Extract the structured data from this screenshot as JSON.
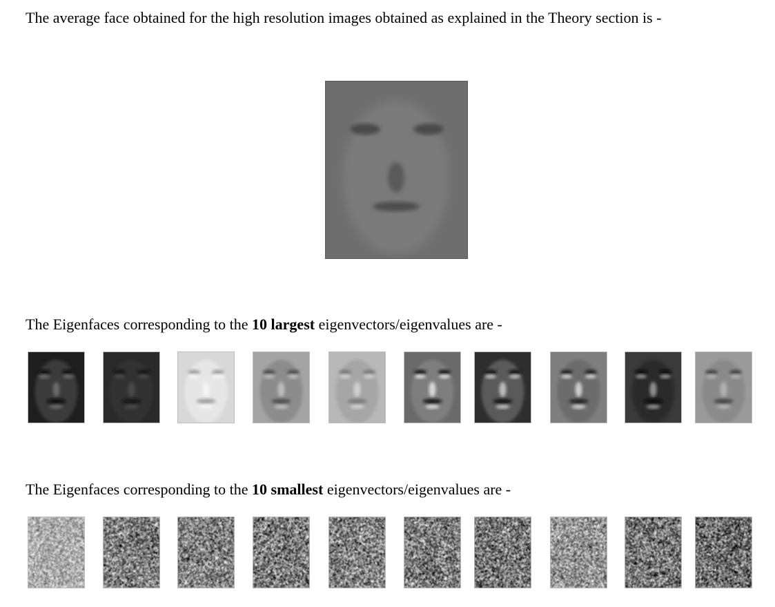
{
  "intro": {
    "text": "The average face obtained for the high resolution images obtained as explained in the Theory section is -"
  },
  "largest": {
    "prefix": "The Eigenfaces corresponding to the ",
    "emphasis": "10 largest",
    "suffix": " eigenvectors/eigenvalues are -",
    "faces": [
      {
        "bg": "#1e1e1e",
        "skin": "#3a3a3a",
        "hi": "#6a6a6a",
        "dark": "#0e0e0e"
      },
      {
        "bg": "#2a2a2a",
        "skin": "#303030",
        "hi": "#4a4a4a",
        "dark": "#161616"
      },
      {
        "bg": "#d8d8d8",
        "skin": "#e6e6e6",
        "hi": "#f4f4f4",
        "dark": "#a0a0a0"
      },
      {
        "bg": "#a4a4a4",
        "skin": "#8c8c8c",
        "hi": "#bcbcbc",
        "dark": "#505050"
      },
      {
        "bg": "#b8b8b8",
        "skin": "#a6a6a6",
        "hi": "#d0d0d0",
        "dark": "#7a7a7a"
      },
      {
        "bg": "#6a6a6a",
        "skin": "#7e7e7e",
        "hi": "#d8d8d8",
        "dark": "#1c1c1c"
      },
      {
        "bg": "#2e2e2e",
        "skin": "#5a5a5a",
        "hi": "#bcbcbc",
        "dark": "#121212"
      },
      {
        "bg": "#7e7e7e",
        "skin": "#6c6c6c",
        "hi": "#cccccc",
        "dark": "#262626"
      },
      {
        "bg": "#3a3a3a",
        "skin": "#2c2c2c",
        "hi": "#8e8e8e",
        "dark": "#0a0a0a"
      },
      {
        "bg": "#9a9a9a",
        "skin": "#8a8a8a",
        "hi": "#b0b0b0",
        "dark": "#464646"
      }
    ]
  },
  "smallest": {
    "prefix": "The Eigenfaces corresponding to the ",
    "emphasis": "10 smallest",
    "suffix": " eigenvectors/eigenvalues are -",
    "faces": [
      {
        "mean": 175,
        "spread": 55
      },
      {
        "mean": 125,
        "spread": 85
      },
      {
        "mean": 128,
        "spread": 85
      },
      {
        "mean": 122,
        "spread": 90
      },
      {
        "mean": 130,
        "spread": 85
      },
      {
        "mean": 124,
        "spread": 88
      },
      {
        "mean": 118,
        "spread": 92
      },
      {
        "mean": 150,
        "spread": 75
      },
      {
        "mean": 120,
        "spread": 90
      },
      {
        "mean": 112,
        "spread": 90
      }
    ]
  },
  "avg_face": {
    "bg": "#6e6e6e",
    "skin": "#7a7a7a",
    "dark": "#4a4a4a"
  }
}
